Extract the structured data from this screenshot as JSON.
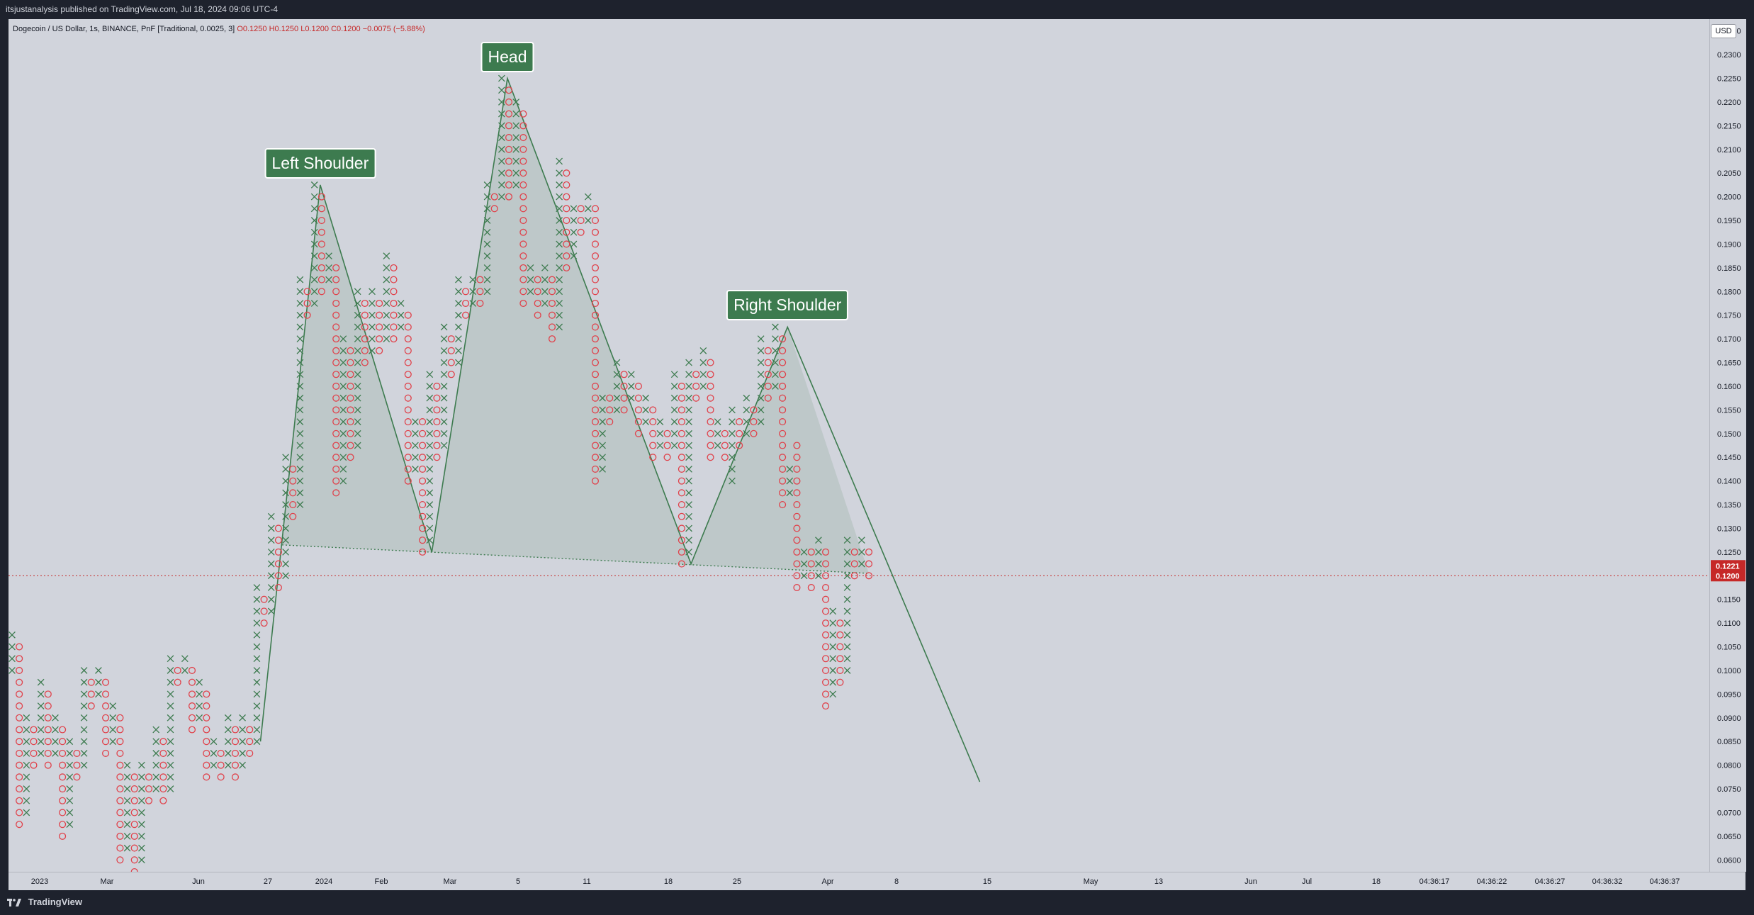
{
  "header": {
    "publish_line": "itsjustanalysis published on TradingView.com, Jul 18, 2024 09:06 UTC-4"
  },
  "legend": {
    "symbol": "Dogecoin / US Dollar, 1s, BINANCE, PnF [Traditional, 0.0025, 3]",
    "open": "O0.1250",
    "high": "H0.1250",
    "low": "L0.1200",
    "close": "C0.1200",
    "change": "−0.0075 (−5.88%)"
  },
  "price_axis": {
    "currency": "USD",
    "last_price_label": "0.1221",
    "close_price_label": "0.1200"
  },
  "annotations": {
    "left_shoulder": "Left Shoulder",
    "head": "Head",
    "right_shoulder": "Right Shoulder"
  },
  "footer": {
    "brand": "TradingView"
  },
  "colors": {
    "background": "#d1d4dc",
    "x_mark": "#3d7b4f",
    "o_mark": "#e0424b",
    "pattern_line": "#3d7b4f",
    "pattern_fill": "#3d7b4f",
    "last_price_badge": "#c62828"
  },
  "chart_data": {
    "type": "point-and-figure",
    "box_size": 0.0025,
    "reversal": 3,
    "ylim": [
      0.0575,
      0.2375
    ],
    "y_ticks": [
      "0.2350",
      "0.2300",
      "0.2250",
      "0.2200",
      "0.2150",
      "0.2100",
      "0.2050",
      "0.2000",
      "0.1950",
      "0.1900",
      "0.1850",
      "0.1800",
      "0.1750",
      "0.1700",
      "0.1650",
      "0.1600",
      "0.1550",
      "0.1500",
      "0.1450",
      "0.1400",
      "0.1350",
      "0.1300",
      "0.1250",
      "0.1150",
      "0.1100",
      "0.1050",
      "0.1000",
      "0.0950",
      "0.0900",
      "0.0850",
      "0.0800",
      "0.0750",
      "0.0700",
      "0.0650",
      "0.0600"
    ],
    "x_ticks": [
      "2023",
      "Mar",
      "Jun",
      "27",
      "2024",
      "Feb",
      "Mar",
      "5",
      "11",
      "18",
      "25",
      "Apr",
      "8",
      "15",
      "May",
      "13",
      "Jun",
      "Jul",
      "18",
      "04:36:17",
      "04:36:22",
      "04:36:27",
      "04:36:32",
      "04:36:37"
    ],
    "columns": [
      {
        "t": "X",
        "lo": 0.1,
        "hi": 0.1075
      },
      {
        "t": "O",
        "lo": 0.0675,
        "hi": 0.105
      },
      {
        "t": "X",
        "lo": 0.07,
        "hi": 0.09
      },
      {
        "t": "O",
        "lo": 0.08,
        "hi": 0.0875
      },
      {
        "t": "X",
        "lo": 0.0825,
        "hi": 0.0975
      },
      {
        "t": "O",
        "lo": 0.08,
        "hi": 0.095
      },
      {
        "t": "X",
        "lo": 0.0825,
        "hi": 0.09
      },
      {
        "t": "O",
        "lo": 0.065,
        "hi": 0.0875
      },
      {
        "t": "X",
        "lo": 0.0675,
        "hi": 0.085
      },
      {
        "t": "O",
        "lo": 0.0775,
        "hi": 0.0825
      },
      {
        "t": "X",
        "lo": 0.08,
        "hi": 0.1
      },
      {
        "t": "O",
        "lo": 0.0925,
        "hi": 0.0975
      },
      {
        "t": "X",
        "lo": 0.095,
        "hi": 0.1
      },
      {
        "t": "O",
        "lo": 0.0825,
        "hi": 0.0975
      },
      {
        "t": "X",
        "lo": 0.085,
        "hi": 0.0925
      },
      {
        "t": "O",
        "lo": 0.06,
        "hi": 0.09
      },
      {
        "t": "X",
        "lo": 0.0625,
        "hi": 0.08
      },
      {
        "t": "O",
        "lo": 0.0575,
        "hi": 0.0775
      },
      {
        "t": "X",
        "lo": 0.06,
        "hi": 0.08
      },
      {
        "t": "O",
        "lo": 0.0725,
        "hi": 0.0775
      },
      {
        "t": "X",
        "lo": 0.075,
        "hi": 0.0875
      },
      {
        "t": "O",
        "lo": 0.0725,
        "hi": 0.085
      },
      {
        "t": "X",
        "lo": 0.075,
        "hi": 0.1025
      },
      {
        "t": "O",
        "lo": 0.0975,
        "hi": 0.1
      },
      {
        "t": "X",
        "lo": 0.1,
        "hi": 0.1025
      },
      {
        "t": "O",
        "lo": 0.0875,
        "hi": 0.1
      },
      {
        "t": "X",
        "lo": 0.09,
        "hi": 0.0975
      },
      {
        "t": "O",
        "lo": 0.0775,
        "hi": 0.095
      },
      {
        "t": "X",
        "lo": 0.08,
        "hi": 0.085
      },
      {
        "t": "O",
        "lo": 0.0775,
        "hi": 0.0825
      },
      {
        "t": "X",
        "lo": 0.08,
        "hi": 0.09
      },
      {
        "t": "O",
        "lo": 0.0775,
        "hi": 0.0875
      },
      {
        "t": "X",
        "lo": 0.08,
        "hi": 0.09
      },
      {
        "t": "O",
        "lo": 0.0825,
        "hi": 0.0875
      },
      {
        "t": "X",
        "lo": 0.085,
        "hi": 0.1175
      },
      {
        "t": "O",
        "lo": 0.11,
        "hi": 0.115
      },
      {
        "t": "X",
        "lo": 0.1125,
        "hi": 0.1325
      },
      {
        "t": "O",
        "lo": 0.1175,
        "hi": 0.13
      },
      {
        "t": "X",
        "lo": 0.12,
        "hi": 0.145
      },
      {
        "t": "O",
        "lo": 0.1325,
        "hi": 0.1425
      },
      {
        "t": "X",
        "lo": 0.135,
        "hi": 0.1825
      },
      {
        "t": "O",
        "lo": 0.175,
        "hi": 0.18
      },
      {
        "t": "X",
        "lo": 0.1775,
        "hi": 0.2025
      },
      {
        "t": "O",
        "lo": 0.18,
        "hi": 0.2
      },
      {
        "t": "X",
        "lo": 0.1825,
        "hi": 0.1875
      },
      {
        "t": "O",
        "lo": 0.1375,
        "hi": 0.185
      },
      {
        "t": "X",
        "lo": 0.14,
        "hi": 0.17
      },
      {
        "t": "O",
        "lo": 0.145,
        "hi": 0.1675
      },
      {
        "t": "X",
        "lo": 0.1475,
        "hi": 0.18
      },
      {
        "t": "O",
        "lo": 0.165,
        "hi": 0.1775
      },
      {
        "t": "X",
        "lo": 0.1675,
        "hi": 0.18
      },
      {
        "t": "O",
        "lo": 0.1675,
        "hi": 0.1775
      },
      {
        "t": "X",
        "lo": 0.17,
        "hi": 0.1875
      },
      {
        "t": "O",
        "lo": 0.17,
        "hi": 0.185
      },
      {
        "t": "X",
        "lo": 0.1725,
        "hi": 0.1775
      },
      {
        "t": "O",
        "lo": 0.14,
        "hi": 0.175
      },
      {
        "t": "X",
        "lo": 0.1425,
        "hi": 0.1525
      },
      {
        "t": "O",
        "lo": 0.125,
        "hi": 0.1525
      },
      {
        "t": "X",
        "lo": 0.1275,
        "hi": 0.1625
      },
      {
        "t": "O",
        "lo": 0.145,
        "hi": 0.16
      },
      {
        "t": "X",
        "lo": 0.1475,
        "hi": 0.1725
      },
      {
        "t": "O",
        "lo": 0.1625,
        "hi": 0.17
      },
      {
        "t": "X",
        "lo": 0.165,
        "hi": 0.1825
      },
      {
        "t": "O",
        "lo": 0.175,
        "hi": 0.18
      },
      {
        "t": "X",
        "lo": 0.1775,
        "hi": 0.1825
      },
      {
        "t": "O",
        "lo": 0.1775,
        "hi": 0.1825
      },
      {
        "t": "X",
        "lo": 0.18,
        "hi": 0.2025
      },
      {
        "t": "O",
        "lo": 0.1975,
        "hi": 0.2
      },
      {
        "t": "X",
        "lo": 0.2,
        "hi": 0.225
      },
      {
        "t": "O",
        "lo": 0.2,
        "hi": 0.2225
      },
      {
        "t": "X",
        "lo": 0.2025,
        "hi": 0.22
      },
      {
        "t": "O",
        "lo": 0.1775,
        "hi": 0.2175
      },
      {
        "t": "X",
        "lo": 0.18,
        "hi": 0.185
      },
      {
        "t": "O",
        "lo": 0.175,
        "hi": 0.1825
      },
      {
        "t": "X",
        "lo": 0.1775,
        "hi": 0.185
      },
      {
        "t": "O",
        "lo": 0.17,
        "hi": 0.1825
      },
      {
        "t": "X",
        "lo": 0.1725,
        "hi": 0.2075
      },
      {
        "t": "O",
        "lo": 0.185,
        "hi": 0.205
      },
      {
        "t": "X",
        "lo": 0.1875,
        "hi": 0.1975
      },
      {
        "t": "O",
        "lo": 0.1925,
        "hi": 0.1975
      },
      {
        "t": "X",
        "lo": 0.195,
        "hi": 0.2
      },
      {
        "t": "O",
        "lo": 0.14,
        "hi": 0.1975
      },
      {
        "t": "X",
        "lo": 0.1425,
        "hi": 0.1575
      },
      {
        "t": "O",
        "lo": 0.1525,
        "hi": 0.1575
      },
      {
        "t": "X",
        "lo": 0.155,
        "hi": 0.165
      },
      {
        "t": "O",
        "lo": 0.155,
        "hi": 0.1625
      },
      {
        "t": "X",
        "lo": 0.1575,
        "hi": 0.1625
      },
      {
        "t": "O",
        "lo": 0.15,
        "hi": 0.16
      },
      {
        "t": "X",
        "lo": 0.1525,
        "hi": 0.1575
      },
      {
        "t": "O",
        "lo": 0.145,
        "hi": 0.155
      },
      {
        "t": "X",
        "lo": 0.1475,
        "hi": 0.1525
      },
      {
        "t": "O",
        "lo": 0.145,
        "hi": 0.15
      },
      {
        "t": "X",
        "lo": 0.1475,
        "hi": 0.1625
      },
      {
        "t": "O",
        "lo": 0.1225,
        "hi": 0.16
      },
      {
        "t": "X",
        "lo": 0.125,
        "hi": 0.165
      },
      {
        "t": "O",
        "lo": 0.1575,
        "hi": 0.1625
      },
      {
        "t": "X",
        "lo": 0.16,
        "hi": 0.1675
      },
      {
        "t": "O",
        "lo": 0.145,
        "hi": 0.165
      },
      {
        "t": "X",
        "lo": 0.1475,
        "hi": 0.1525
      },
      {
        "t": "O",
        "lo": 0.145,
        "hi": 0.15
      },
      {
        "t": "X",
        "lo": 0.14,
        "hi": 0.155
      },
      {
        "t": "O",
        "lo": 0.1475,
        "hi": 0.1525
      },
      {
        "t": "X",
        "lo": 0.15,
        "hi": 0.1575
      },
      {
        "t": "O",
        "lo": 0.15,
        "hi": 0.155
      },
      {
        "t": "X",
        "lo": 0.1525,
        "hi": 0.17
      },
      {
        "t": "O",
        "lo": 0.1575,
        "hi": 0.1675
      },
      {
        "t": "X",
        "lo": 0.16,
        "hi": 0.1725
      },
      {
        "t": "O",
        "lo": 0.135,
        "hi": 0.17
      },
      {
        "t": "X",
        "lo": 0.1375,
        "hi": 0.1425
      },
      {
        "t": "O",
        "lo": 0.1175,
        "hi": 0.1475
      },
      {
        "t": "X",
        "lo": 0.12,
        "hi": 0.125
      },
      {
        "t": "O",
        "lo": 0.1175,
        "hi": 0.125
      },
      {
        "t": "X",
        "lo": 0.12,
        "hi": 0.1275
      },
      {
        "t": "O",
        "lo": 0.0925,
        "hi": 0.125
      },
      {
        "t": "X",
        "lo": 0.095,
        "hi": 0.1125
      },
      {
        "t": "O",
        "lo": 0.0975,
        "hi": 0.11
      },
      {
        "t": "X",
        "lo": 0.1,
        "hi": 0.1275
      },
      {
        "t": "O",
        "lo": 0.12,
        "hi": 0.125
      },
      {
        "t": "X",
        "lo": 0.1225,
        "hi": 0.1275
      },
      {
        "t": "O",
        "lo": 0.12,
        "hi": 0.125
      }
    ],
    "pattern": {
      "outline": [
        [
          0.085,
          0.1275
        ],
        [
          0.2025,
          0.2025
        ],
        [
          0.125,
          0.225
        ],
        [
          0.225,
          0.225
        ],
        [
          0.1225,
          0.1725
        ],
        [
          0.1725,
          0.1275
        ]
      ],
      "neckline": [
        0.1265,
        0.1205
      ],
      "breakdown_target": 0.0765
    },
    "last_price": 0.1221,
    "close_price": 0.12
  }
}
